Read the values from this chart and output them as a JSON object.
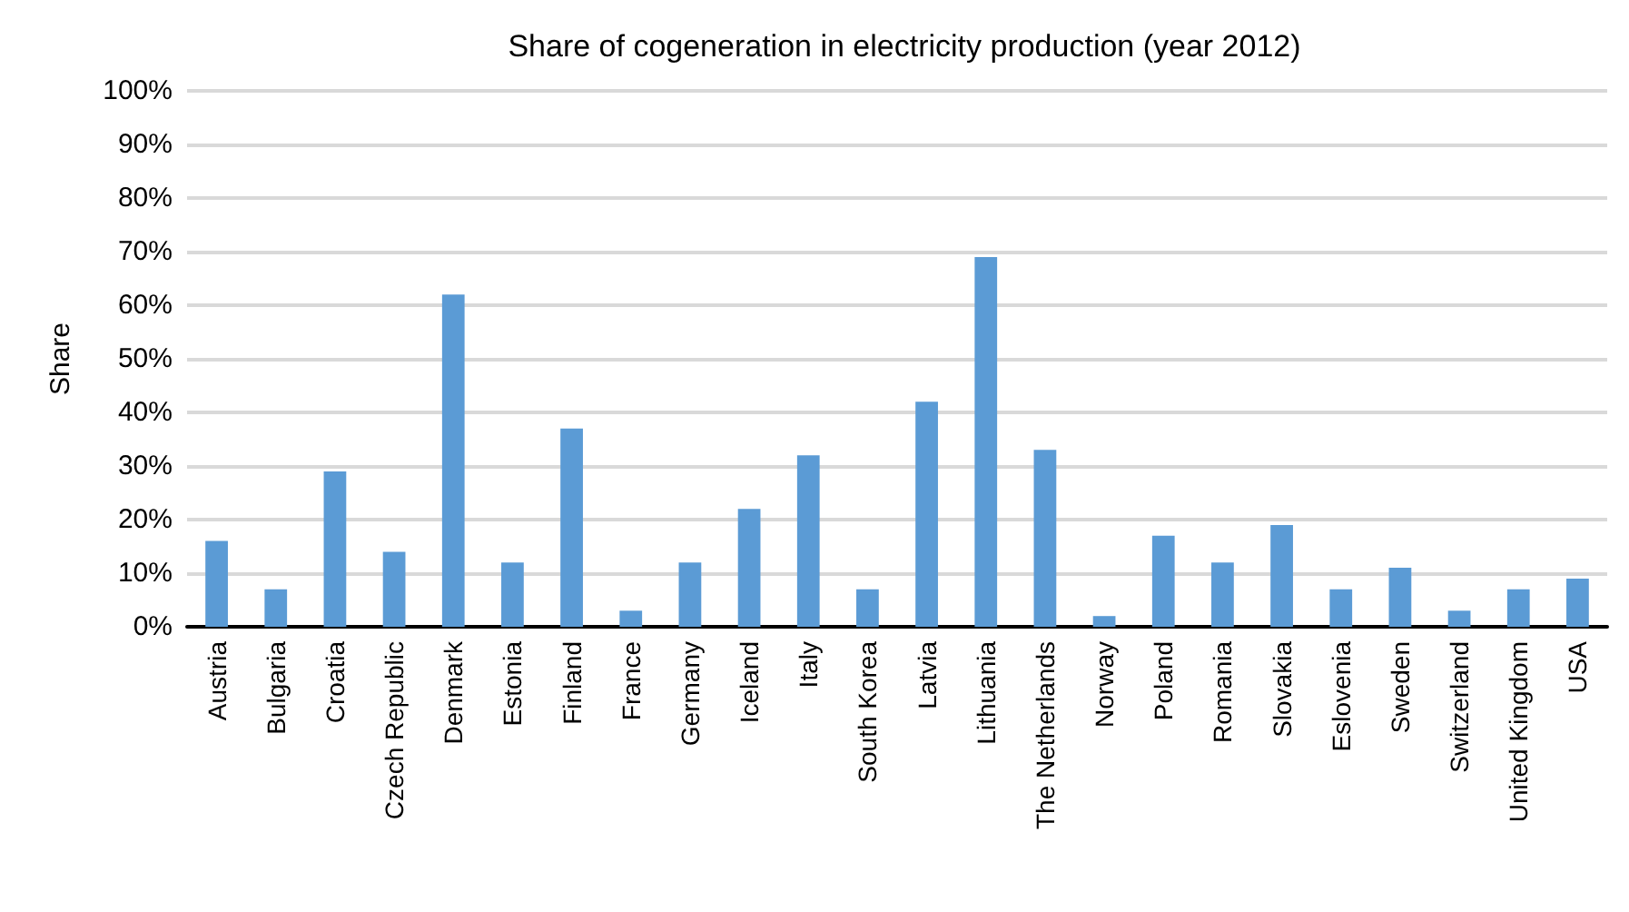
{
  "chart_data": {
    "type": "bar",
    "title": "Share of cogeneration in electricity production (year 2012)",
    "ylabel": "Share",
    "categories": [
      "Austria",
      "Bulgaria",
      "Croatia",
      "Czech Republic",
      "Denmark",
      "Estonia",
      "Finland",
      "France",
      "Germany",
      "Iceland",
      "Italy",
      "South Korea",
      "Latvia",
      "Lithuania",
      "The Netherlands",
      "Norway",
      "Poland",
      "Romania",
      "Slovakia",
      "Eslovenia",
      "Sweden",
      "Switzerland",
      "United Kingdom",
      "USA"
    ],
    "values": [
      16,
      7,
      29,
      14,
      62,
      12,
      37,
      3,
      12,
      22,
      32,
      7,
      42,
      69,
      33,
      2,
      17,
      12,
      19,
      7,
      11,
      3,
      7,
      9
    ],
    "color": "#5b9bd5",
    "ylim": [
      0,
      100
    ],
    "yticks": [
      {
        "value": 0,
        "label": "0%"
      },
      {
        "value": 10,
        "label": "10%"
      },
      {
        "value": 20,
        "label": "20%"
      },
      {
        "value": 30,
        "label": "30%"
      },
      {
        "value": 40,
        "label": "40%"
      },
      {
        "value": 50,
        "label": "50%"
      },
      {
        "value": 60,
        "label": "60%"
      },
      {
        "value": 70,
        "label": "70%"
      },
      {
        "value": 80,
        "label": "80%"
      },
      {
        "value": 90,
        "label": "90%"
      },
      {
        "value": 100,
        "label": "100%"
      }
    ],
    "grid": "y"
  }
}
